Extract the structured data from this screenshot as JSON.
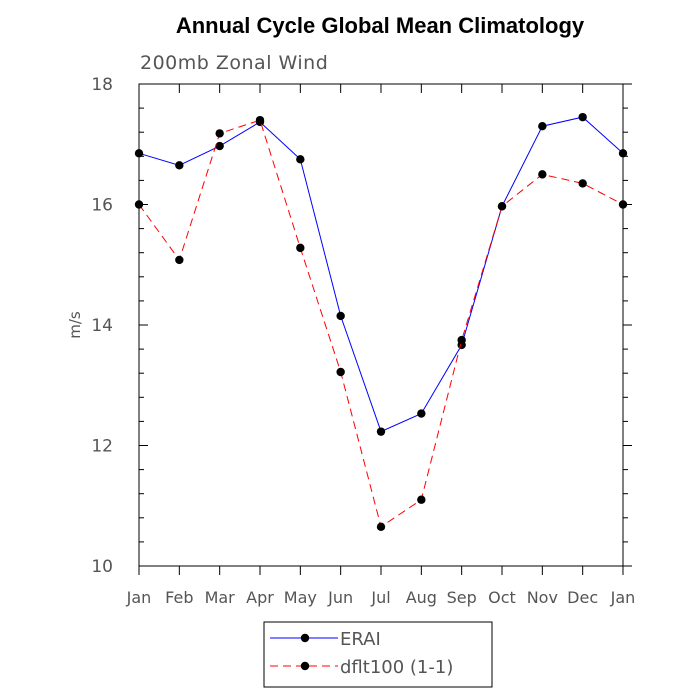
{
  "chart_data": {
    "type": "line",
    "title": "Annual Cycle Global Mean Climatology",
    "subtitle": "200mb Zonal Wind",
    "xlabel": "",
    "ylabel": "m/s",
    "categories": [
      "Jan",
      "Feb",
      "Mar",
      "Apr",
      "May",
      "Jun",
      "Jul",
      "Aug",
      "Sep",
      "Oct",
      "Nov",
      "Dec",
      "Jan"
    ],
    "ylim": [
      10,
      18
    ],
    "yticks": [
      10,
      12,
      14,
      16,
      18
    ],
    "ytick_labels": [
      "10",
      "12",
      "14",
      "16",
      "18"
    ],
    "grid": false,
    "legend_position": "bottom-center",
    "series": [
      {
        "name": "ERAI",
        "color": "#0000ff",
        "line_style": "solid",
        "marker": "filled-circle",
        "values": [
          16.85,
          16.65,
          16.97,
          17.37,
          16.75,
          14.15,
          12.23,
          12.53,
          13.67,
          15.97,
          17.3,
          17.45,
          16.85
        ]
      },
      {
        "name": "dflt100 (1-1)",
        "color": "#ff0000",
        "line_style": "dashed",
        "marker": "filled-circle",
        "values": [
          16.0,
          15.08,
          17.18,
          17.4,
          15.28,
          13.22,
          10.65,
          11.1,
          13.75,
          15.97,
          16.5,
          16.35,
          16.0
        ]
      }
    ]
  }
}
